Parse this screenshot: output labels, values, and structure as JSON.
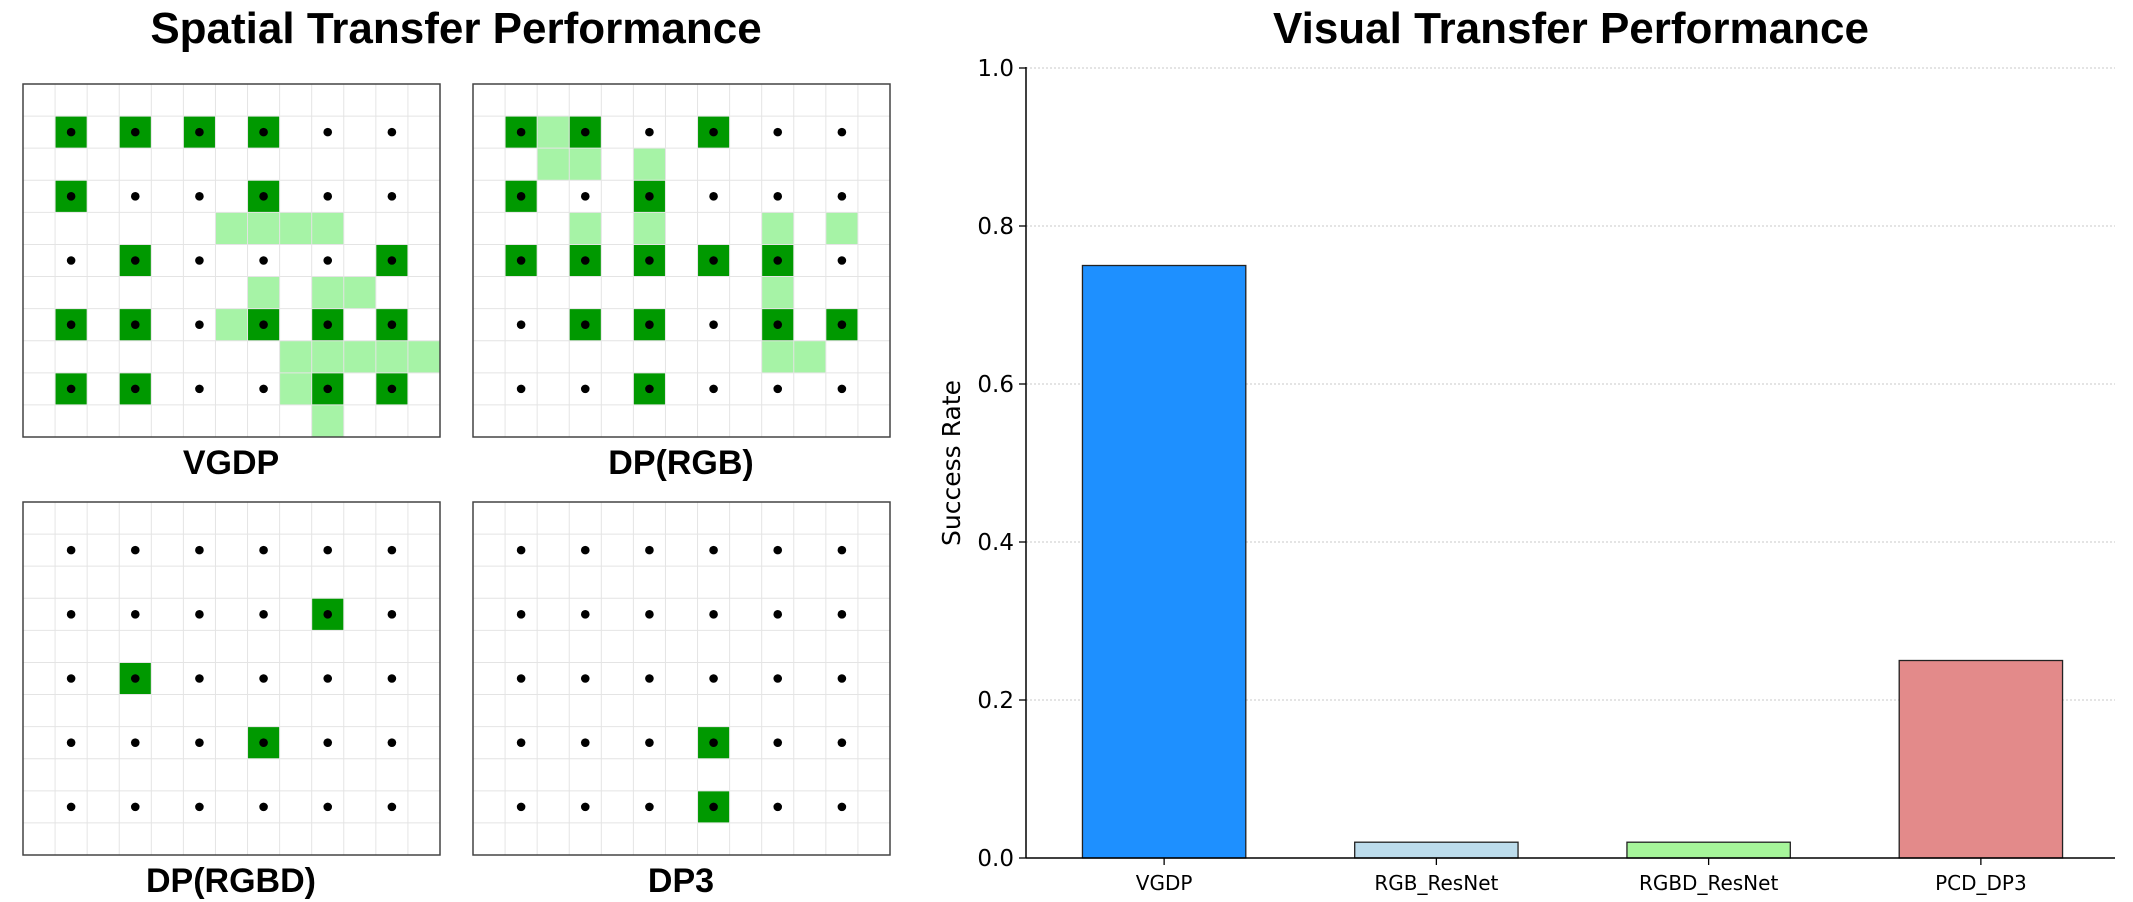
{
  "left_title": "Spatial Transfer Performance",
  "right_title": "Visual Transfer Performance",
  "colors": {
    "success": "#009900",
    "partial": "#a6f3a6",
    "grid": "#e4e4e4",
    "dot": "#000000"
  },
  "chart_data": [
    {
      "type": "heatmap",
      "title": "Spatial Transfer Performance",
      "grid_size": {
        "cols": 13,
        "rows": 11
      },
      "dot_rows": [
        1,
        3,
        5,
        7,
        9
      ],
      "dot_cols": [
        1,
        3,
        5,
        7,
        9,
        11
      ],
      "panels": [
        {
          "label": "VGDP",
          "success": [
            [
              1,
              1
            ],
            [
              1,
              3
            ],
            [
              1,
              5
            ],
            [
              1,
              7
            ],
            [
              3,
              1
            ],
            [
              3,
              7
            ],
            [
              5,
              3
            ],
            [
              5,
              11
            ],
            [
              7,
              1
            ],
            [
              7,
              3
            ],
            [
              7,
              7
            ],
            [
              7,
              9
            ],
            [
              7,
              11
            ],
            [
              9,
              1
            ],
            [
              9,
              3
            ],
            [
              9,
              9
            ],
            [
              9,
              11
            ]
          ],
          "partial": [
            [
              4,
              6
            ],
            [
              4,
              7
            ],
            [
              4,
              8
            ],
            [
              4,
              9
            ],
            [
              6,
              7
            ],
            [
              6,
              9
            ],
            [
              6,
              10
            ],
            [
              7,
              6
            ],
            [
              8,
              8
            ],
            [
              8,
              9
            ],
            [
              8,
              10
            ],
            [
              8,
              11
            ],
            [
              8,
              12
            ],
            [
              9,
              8
            ],
            [
              10,
              9
            ]
          ]
        },
        {
          "label": "DP(RGB)",
          "success": [
            [
              1,
              1
            ],
            [
              1,
              3
            ],
            [
              1,
              7
            ],
            [
              3,
              1
            ],
            [
              3,
              5
            ],
            [
              5,
              1
            ],
            [
              5,
              3
            ],
            [
              5,
              5
            ],
            [
              5,
              7
            ],
            [
              5,
              9
            ],
            [
              7,
              3
            ],
            [
              7,
              5
            ],
            [
              7,
              9
            ],
            [
              7,
              11
            ],
            [
              9,
              5
            ]
          ],
          "partial": [
            [
              1,
              2
            ],
            [
              2,
              2
            ],
            [
              2,
              3
            ],
            [
              2,
              5
            ],
            [
              4,
              3
            ],
            [
              4,
              5
            ],
            [
              4,
              9
            ],
            [
              4,
              11
            ],
            [
              6,
              9
            ],
            [
              8,
              9
            ],
            [
              8,
              10
            ]
          ]
        },
        {
          "label": "DP(RGBD)",
          "success": [
            [
              3,
              9
            ],
            [
              5,
              3
            ],
            [
              7,
              7
            ]
          ],
          "partial": []
        },
        {
          "label": "DP3",
          "success": [
            [
              7,
              7
            ],
            [
              9,
              7
            ]
          ],
          "partial": []
        }
      ]
    },
    {
      "type": "bar",
      "title": "Visual Transfer Performance",
      "categories": [
        "VGDP",
        "RGB_ResNet",
        "RGBD_ResNet",
        "PCD_DP3"
      ],
      "values": [
        0.75,
        0.02,
        0.02,
        0.25
      ],
      "bar_colors": [
        "#1e90ff",
        "#bcdcec",
        "#a6f59a",
        "#e38a8a"
      ],
      "xlabel": "",
      "ylabel": "Success Rate",
      "ylim": [
        0,
        1.0
      ],
      "yticks": [
        "0.0",
        "0.2",
        "0.4",
        "0.6",
        "0.8",
        "1.0"
      ],
      "grid": "horizontal dotted"
    }
  ]
}
